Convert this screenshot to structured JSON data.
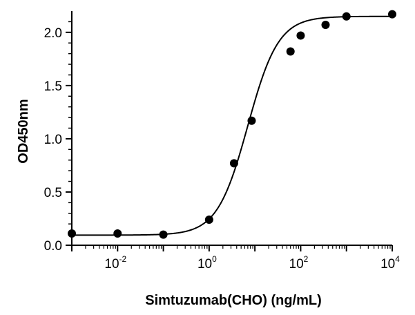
{
  "chart_data": {
    "type": "scatter",
    "xlabel": "Simtuzumab(CHO) (ng/mL)",
    "ylabel": "OD450nm",
    "x_scale": "log",
    "xlim": [
      0.001,
      10000
    ],
    "ylim": [
      0,
      2.2
    ],
    "x_tick_labels": [
      {
        "base": "10",
        "exp": "-2",
        "value": 0.01
      },
      {
        "base": "10",
        "exp": "0",
        "value": 1
      },
      {
        "base": "10",
        "exp": "2",
        "value": 100
      },
      {
        "base": "10",
        "exp": "4",
        "value": 10000
      }
    ],
    "y_tick_labels": [
      "0.0",
      "0.5",
      "1.0",
      "1.5",
      "2.0"
    ],
    "y_tick_values": [
      0,
      0.5,
      1.0,
      1.5,
      2.0
    ],
    "grid": false,
    "legend": "none",
    "series": [
      {
        "points": [
          {
            "x": 0.001,
            "y": 0.11
          },
          {
            "x": 0.01,
            "y": 0.11
          },
          {
            "x": 0.1,
            "y": 0.1
          },
          {
            "x": 1,
            "y": 0.24
          },
          {
            "x": 3.5,
            "y": 0.77
          },
          {
            "x": 8.5,
            "y": 1.17
          },
          {
            "x": 60,
            "y": 1.82
          },
          {
            "x": 100,
            "y": 1.97
          },
          {
            "x": 350,
            "y": 2.07
          },
          {
            "x": 1000,
            "y": 2.15
          },
          {
            "x": 10000,
            "y": 2.17
          }
        ],
        "fit": {
          "model": "4PL",
          "bottom": 0.095,
          "top": 2.15,
          "ec50": 7.0,
          "hill": 1.3
        },
        "color": "#000000"
      }
    ]
  }
}
